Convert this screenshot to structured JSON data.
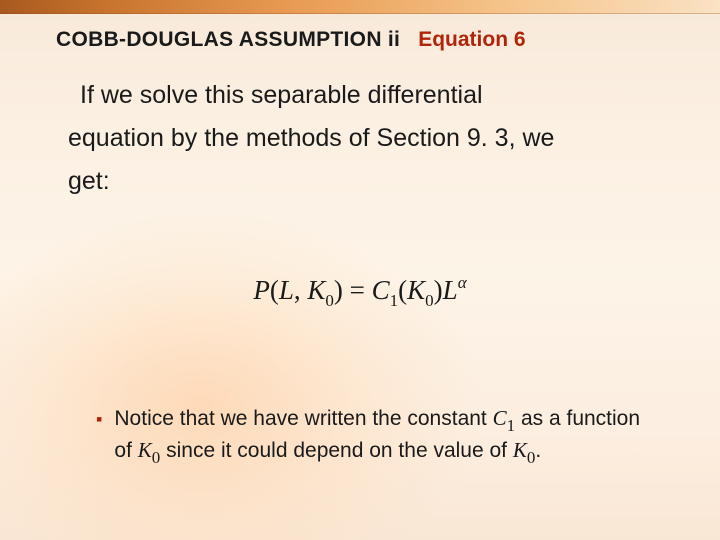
{
  "accent": {
    "gradient_colors": [
      "#a8591f",
      "#c8742e",
      "#e89a52",
      "#f5c389",
      "#fae2c4"
    ]
  },
  "background": {
    "gradient_stops": [
      "#f8e9da",
      "#fbefe1",
      "#fdf4e8",
      "#fceee0",
      "#f9e7d5"
    ],
    "radial_tint": "rgba(255,200,150,0.55)"
  },
  "header": {
    "title": "COBB-DOUGLAS ASSUMPTION ii",
    "equation_label": "Equation 6",
    "title_color": "#1a1a1a",
    "equation_color": "#b0240a",
    "fontsize": 21,
    "font_weight": "bold"
  },
  "body": {
    "line1_indent": "If we solve this separable differential",
    "line2": "equation by the methods of Section 9. 3, we",
    "line3": "get:",
    "fontsize": 25,
    "line_height": 1.72,
    "color": "#1a1a1a"
  },
  "equation": {
    "P": "P",
    "open1": "(",
    "L": "L",
    "comma_sp": ", ",
    "K1": "K",
    "sub0a": "0",
    "close1_eq": ") = ",
    "C": "C",
    "sub1": "1",
    "open2": "(",
    "K2": "K",
    "sub0b": "0",
    "close2": ")",
    "L2": "L",
    "alpha": "α",
    "fontsize": 27,
    "font_family": "Times New Roman",
    "color": "#1a1a1a"
  },
  "bullet": {
    "symbol": "▪",
    "symbol_color": "#b0240a",
    "pre1": "Notice that we have written the constant ",
    "C": "C",
    "sub1": "1",
    "post1_pre2": " as a function of ",
    "K1": "K",
    "sub0a": "0",
    "mid2": " since it could depend on the value of ",
    "K2": "K",
    "sub0b": "0",
    "period": ".",
    "fontsize": 21,
    "line_height": 1.36,
    "color": "#1a1a1a"
  }
}
